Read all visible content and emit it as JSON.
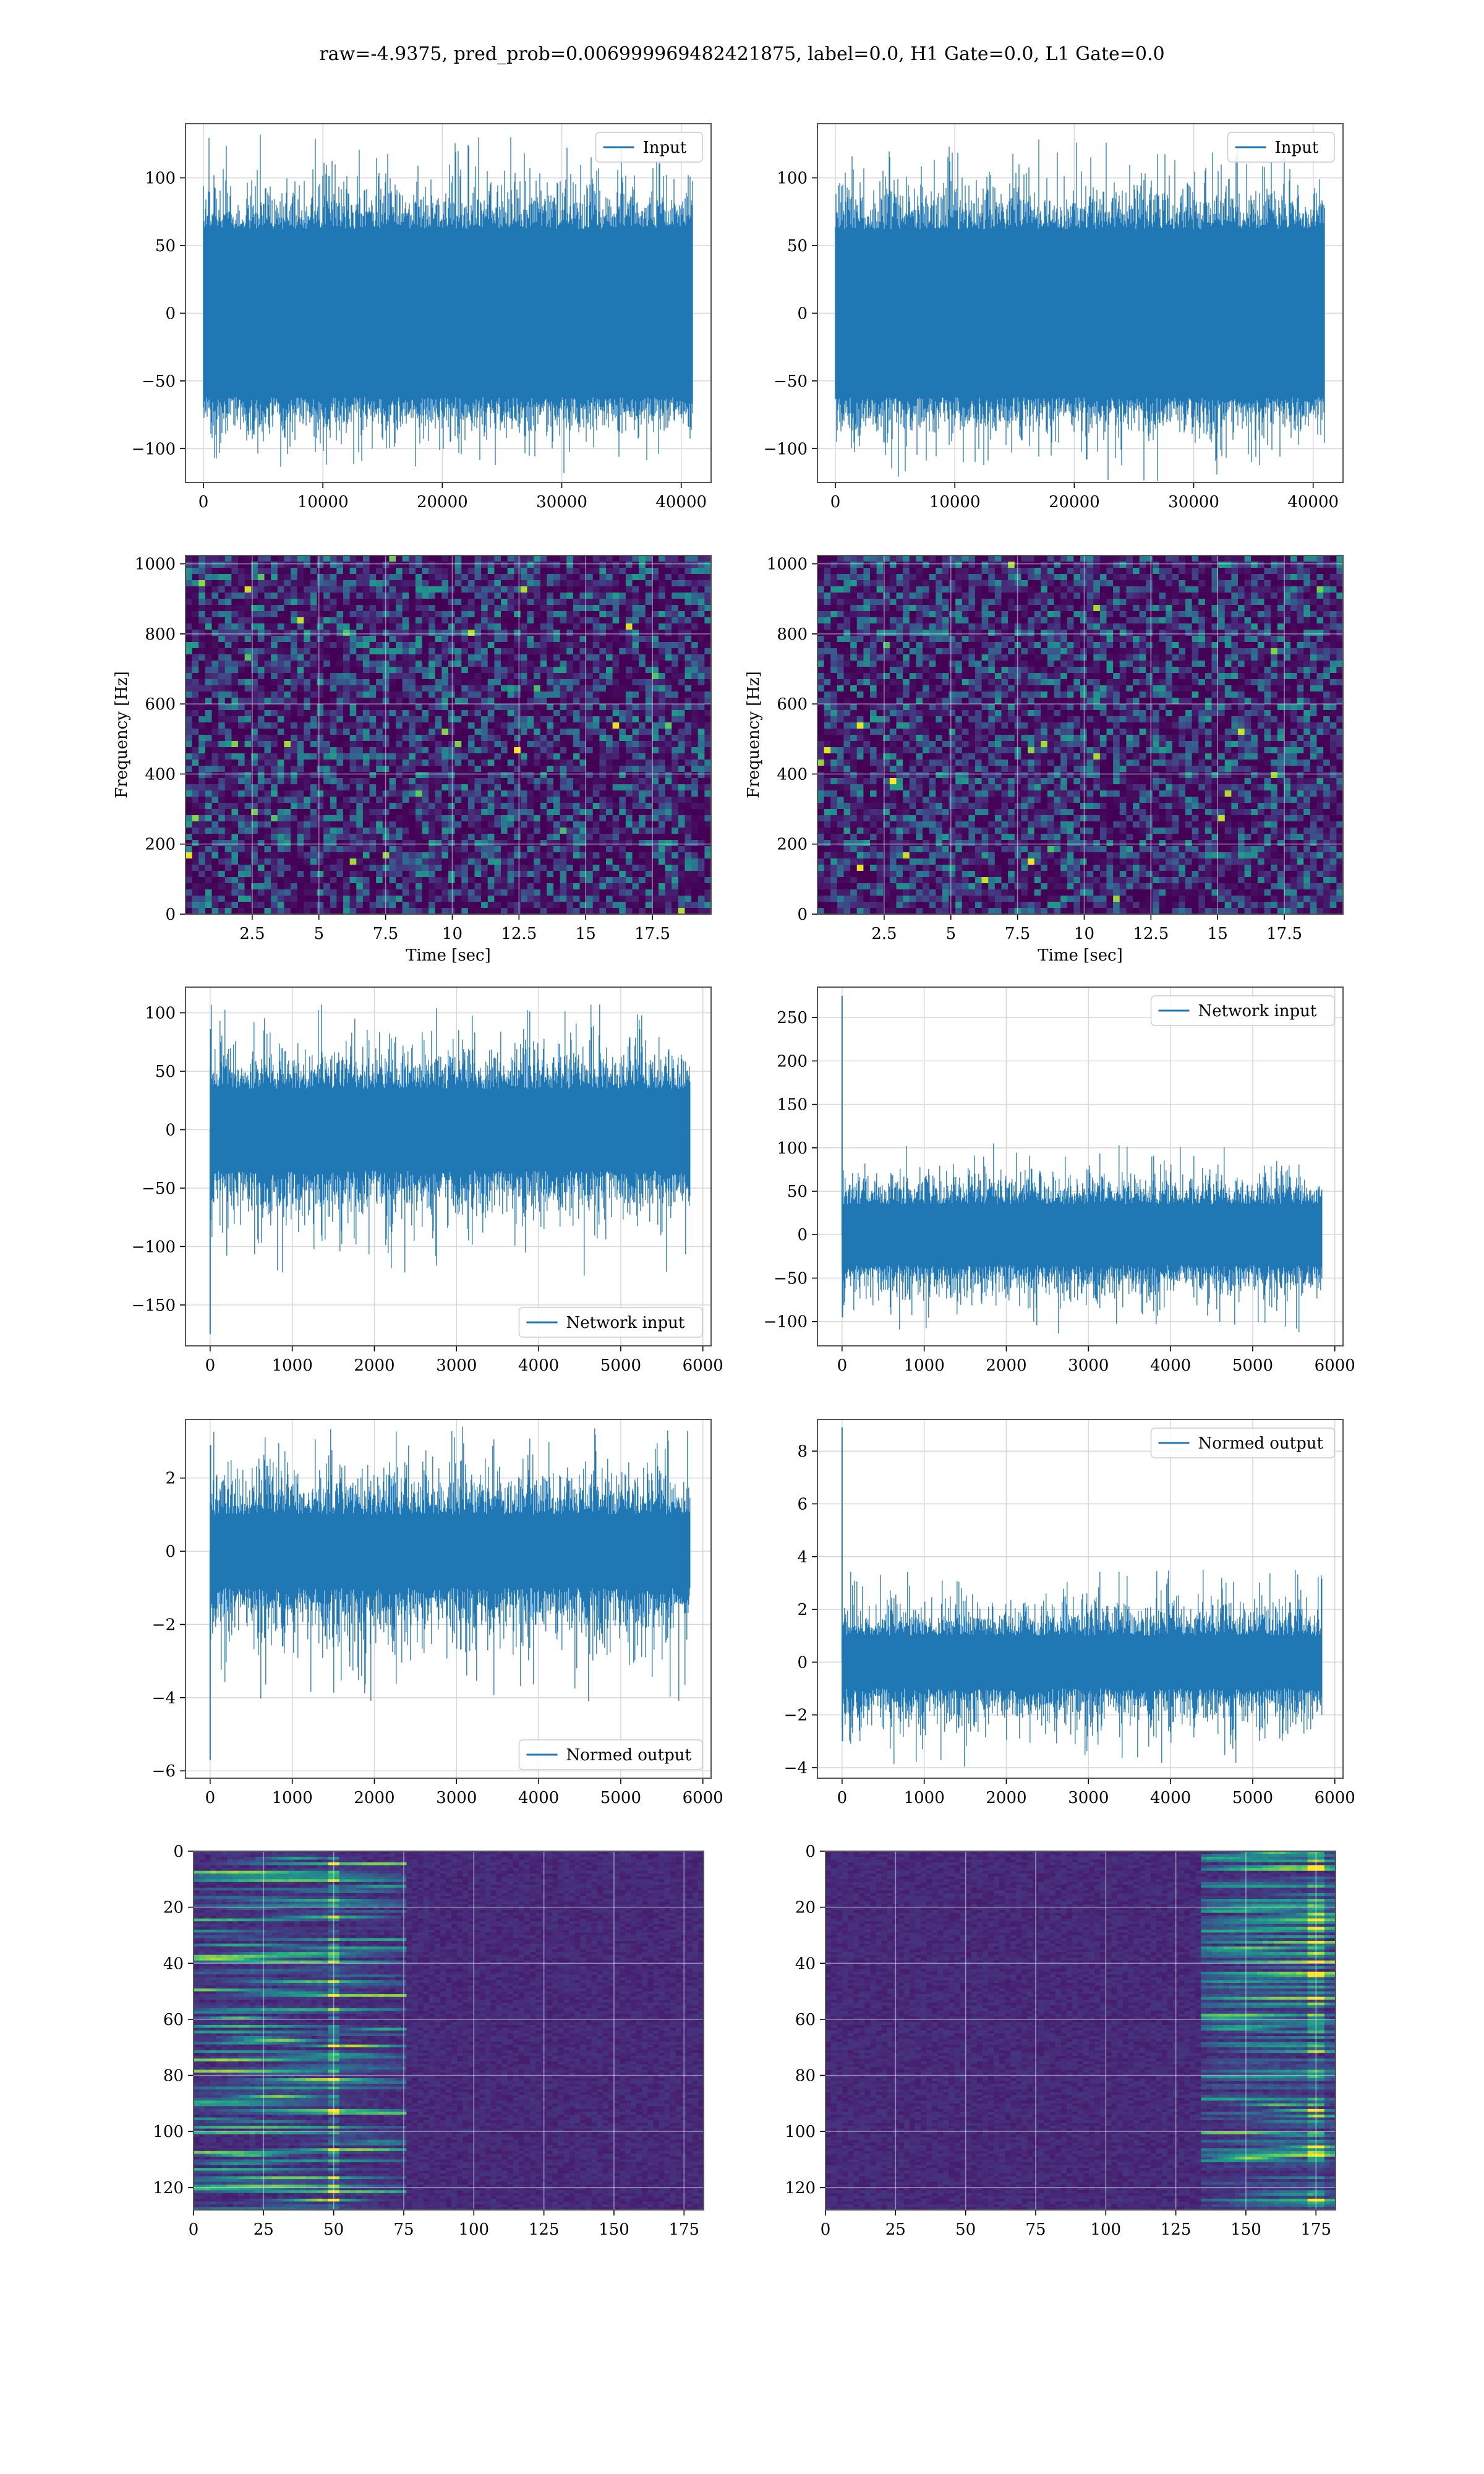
{
  "figure": {
    "suptitle": "raw=-4.9375, pred_prob=0.006999969482421875, label=0.0, H1 Gate=0.0, L1 Gate=0.0"
  },
  "style": {
    "line_color": "#1f77b4",
    "grid_color": "#d9d9d9",
    "cmap": "viridis"
  },
  "chart_data": [
    {
      "id": "input-h1",
      "type": "line",
      "xlim": [
        -1500,
        42500
      ],
      "ylim": [
        -125,
        140
      ],
      "xticks": [
        0,
        10000,
        20000,
        30000,
        40000
      ],
      "yticks": [
        -100,
        -50,
        0,
        50,
        100
      ],
      "series": [
        {
          "name": "Input",
          "n": 40960,
          "x_range": [
            0,
            40960
          ],
          "envelope": [
            -118,
            132
          ],
          "core": [
            -62,
            62
          ]
        }
      ],
      "legend": "upper right",
      "grid": true,
      "xlabel": "",
      "ylabel": ""
    },
    {
      "id": "input-l1",
      "type": "line",
      "xlim": [
        -1500,
        42500
      ],
      "ylim": [
        -125,
        140
      ],
      "xticks": [
        0,
        10000,
        20000,
        30000,
        40000
      ],
      "yticks": [
        -100,
        -50,
        0,
        50,
        100
      ],
      "series": [
        {
          "name": "Input",
          "n": 40960,
          "x_range": [
            0,
            40960
          ],
          "envelope": [
            -124,
            130
          ],
          "core": [
            -62,
            62
          ]
        }
      ],
      "legend": "upper right",
      "grid": true,
      "xlabel": "",
      "ylabel": ""
    },
    {
      "id": "spec-h1",
      "type": "heatmap",
      "xlim": [
        0,
        19.7
      ],
      "ylim": [
        0,
        1024
      ],
      "xticks": [
        2.5,
        5.0,
        7.5,
        10.0,
        12.5,
        15.0,
        17.5
      ],
      "yticks": [
        0,
        200,
        400,
        600,
        800,
        1000
      ],
      "xlabel": "Time [sec]",
      "ylabel": "Frequency [Hz]",
      "grid": true,
      "cmap": "viridis"
    },
    {
      "id": "spec-l1",
      "type": "heatmap",
      "xlim": [
        0,
        19.7
      ],
      "ylim": [
        0,
        1024
      ],
      "xticks": [
        2.5,
        5.0,
        7.5,
        10.0,
        12.5,
        15.0,
        17.5
      ],
      "yticks": [
        0,
        200,
        400,
        600,
        800,
        1000
      ],
      "xlabel": "Time [sec]",
      "ylabel": "Frequency [Hz]",
      "grid": true,
      "cmap": "viridis"
    },
    {
      "id": "netin-h1",
      "type": "line",
      "xlim": [
        -300,
        6100
      ],
      "ylim": [
        -185,
        122
      ],
      "xticks": [
        0,
        1000,
        2000,
        3000,
        4000,
        5000,
        6000
      ],
      "yticks": [
        -150,
        -100,
        -50,
        0,
        50,
        100
      ],
      "series": [
        {
          "name": "Network input",
          "n": 5840,
          "x_range": [
            0,
            5840
          ],
          "envelope": [
            -125,
            107
          ],
          "core": [
            -35,
            35
          ],
          "spikes": [
            {
              "x": 0,
              "y": -175
            },
            {
              "x": 5,
              "y": 86
            }
          ]
        }
      ],
      "legend": "lower right",
      "grid": true,
      "xlabel": "",
      "ylabel": ""
    },
    {
      "id": "netin-l1",
      "type": "line",
      "xlim": [
        -300,
        6100
      ],
      "ylim": [
        -128,
        285
      ],
      "xticks": [
        0,
        1000,
        2000,
        3000,
        4000,
        5000,
        6000
      ],
      "yticks": [
        -100,
        -50,
        0,
        50,
        100,
        150,
        200,
        250
      ],
      "series": [
        {
          "name": "Network input",
          "n": 5840,
          "x_range": [
            0,
            5840
          ],
          "envelope": [
            -118,
            105
          ],
          "core": [
            -35,
            35
          ],
          "spikes": [
            {
              "x": 0,
              "y": 275
            },
            {
              "x": 5,
              "y": -95
            }
          ]
        }
      ],
      "legend": "upper right",
      "grid": true,
      "xlabel": "",
      "ylabel": ""
    },
    {
      "id": "normed-h1",
      "type": "line",
      "xlim": [
        -300,
        6100
      ],
      "ylim": [
        -6.2,
        3.6
      ],
      "xticks": [
        0,
        1000,
        2000,
        3000,
        4000,
        5000,
        6000
      ],
      "yticks": [
        -6,
        -4,
        -2,
        0,
        2
      ],
      "series": [
        {
          "name": "Normed output",
          "n": 5840,
          "x_range": [
            0,
            5840
          ],
          "envelope": [
            -4.1,
            3.4
          ],
          "core": [
            -1.0,
            1.0
          ],
          "spikes": [
            {
              "x": 0,
              "y": -5.7
            },
            {
              "x": 5,
              "y": 2.9
            }
          ]
        }
      ],
      "legend": "lower right",
      "grid": true,
      "xlabel": "",
      "ylabel": ""
    },
    {
      "id": "normed-l1",
      "type": "line",
      "xlim": [
        -300,
        6100
      ],
      "ylim": [
        -4.4,
        9.2
      ],
      "xticks": [
        0,
        1000,
        2000,
        3000,
        4000,
        5000,
        6000
      ],
      "yticks": [
        -4,
        -2,
        0,
        2,
        4,
        6,
        8
      ],
      "series": [
        {
          "name": "Normed output",
          "n": 5840,
          "x_range": [
            0,
            5840
          ],
          "envelope": [
            -4.1,
            3.5
          ],
          "core": [
            -1.0,
            1.0
          ],
          "spikes": [
            {
              "x": 0,
              "y": 8.9
            },
            {
              "x": 5,
              "y": -3.0
            }
          ]
        }
      ],
      "legend": "upper right",
      "grid": true,
      "xlabel": "",
      "ylabel": ""
    },
    {
      "id": "features-h1",
      "type": "heatmap",
      "xlim": [
        0,
        182
      ],
      "ylim": [
        128,
        0
      ],
      "xticks": [
        0,
        25,
        50,
        75,
        100,
        125,
        150,
        175
      ],
      "yticks": [
        0,
        20,
        40,
        60,
        80,
        100,
        120
      ],
      "hot_x_range": [
        0,
        70
      ],
      "grid": true,
      "cmap": "viridis",
      "xlabel": "",
      "ylabel": ""
    },
    {
      "id": "features-l1",
      "type": "heatmap",
      "xlim": [
        0,
        182
      ],
      "ylim": [
        128,
        0
      ],
      "xticks": [
        0,
        25,
        50,
        75,
        100,
        125,
        150,
        175
      ],
      "yticks": [
        0,
        20,
        40,
        60,
        80,
        100,
        120
      ],
      "hot_x_range": [
        140,
        182
      ],
      "grid": true,
      "cmap": "viridis",
      "xlabel": "",
      "ylabel": ""
    }
  ]
}
